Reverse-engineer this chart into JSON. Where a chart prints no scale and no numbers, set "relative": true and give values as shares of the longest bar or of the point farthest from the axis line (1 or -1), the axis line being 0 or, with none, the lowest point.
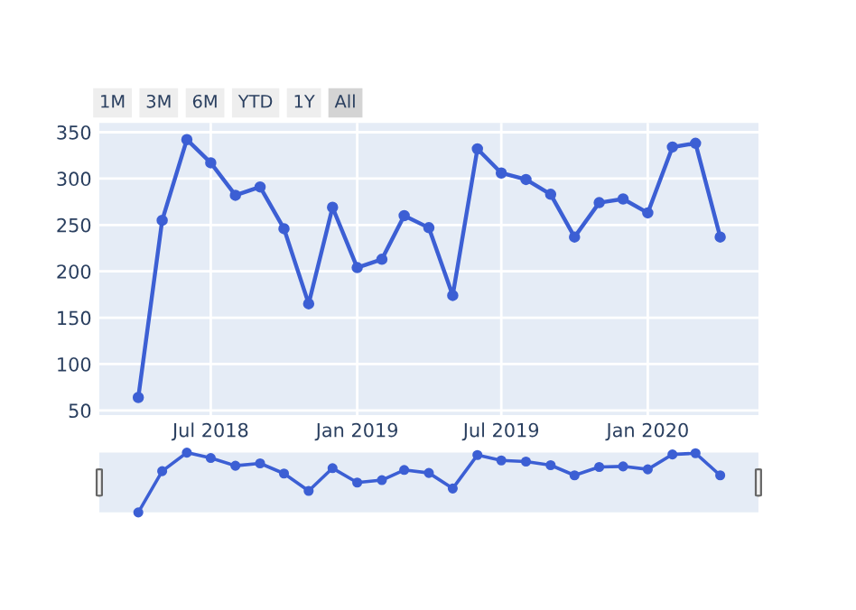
{
  "chart_data": [
    {
      "type": "line",
      "marker": "circle",
      "line_style": "solid",
      "grid": true,
      "legend": false,
      "annotations": [
        "1M",
        "3M",
        "6M",
        "YTD",
        "1Y",
        "All"
      ],
      "x": [
        "2018-04-01",
        "2018-05-01",
        "2018-06-01",
        "2018-07-01",
        "2018-08-01",
        "2018-09-01",
        "2018-10-01",
        "2018-11-01",
        "2018-12-01",
        "2019-01-01",
        "2019-02-01",
        "2019-03-01",
        "2019-04-01",
        "2019-05-01",
        "2019-06-01",
        "2019-07-01",
        "2019-08-01",
        "2019-09-01",
        "2019-10-01",
        "2019-11-01",
        "2019-12-01",
        "2020-01-01",
        "2020-02-01",
        "2020-03-01",
        "2020-04-01"
      ],
      "series": [
        {
          "color": "#3c5fd4",
          "values": [
            64,
            255,
            342,
            317,
            282,
            291,
            246,
            165,
            269,
            204,
            213,
            260,
            247,
            174,
            332,
            306,
            299,
            283,
            237,
            274,
            278,
            263,
            334,
            338,
            237
          ]
        }
      ],
      "xlim": [
        "2018-02-11",
        "2020-05-19"
      ],
      "ylim": [
        45,
        360
      ],
      "xticks": [
        {
          "value": "2018-07-01",
          "label": "Jul 2018"
        },
        {
          "value": "2019-01-01",
          "label": "Jan 2019"
        },
        {
          "value": "2019-07-01",
          "label": "Jul 2019"
        },
        {
          "value": "2020-01-01",
          "label": "Jan 2020"
        }
      ],
      "yticks": [
        50,
        100,
        150,
        200,
        250,
        300,
        350
      ]
    },
    {
      "type": "line",
      "marker": "circle",
      "line_style": "solid",
      "relative": true,
      "x": [
        "2018-04-01",
        "2018-05-01",
        "2018-06-01",
        "2018-07-01",
        "2018-08-01",
        "2018-09-01",
        "2018-10-01",
        "2018-11-01",
        "2018-12-01",
        "2019-01-01",
        "2019-02-01",
        "2019-03-01",
        "2019-04-01",
        "2019-05-01",
        "2019-06-01",
        "2019-07-01",
        "2019-08-01",
        "2019-09-01",
        "2019-10-01",
        "2019-11-01",
        "2019-12-01",
        "2020-01-01",
        "2020-02-01",
        "2020-03-01",
        "2020-04-01"
      ],
      "series": [
        {
          "color": "#3c5fd4",
          "values": [
            0,
            0.69,
            1,
            0.91,
            0.78,
            0.82,
            0.65,
            0.36,
            0.74,
            0.5,
            0.54,
            0.71,
            0.66,
            0.4,
            0.96,
            0.87,
            0.85,
            0.79,
            0.62,
            0.76,
            0.77,
            0.72,
            0.97,
            0.99,
            0.62
          ]
        }
      ],
      "xlim": [
        "2018-02-11",
        "2020-05-19"
      ]
    }
  ]
}
